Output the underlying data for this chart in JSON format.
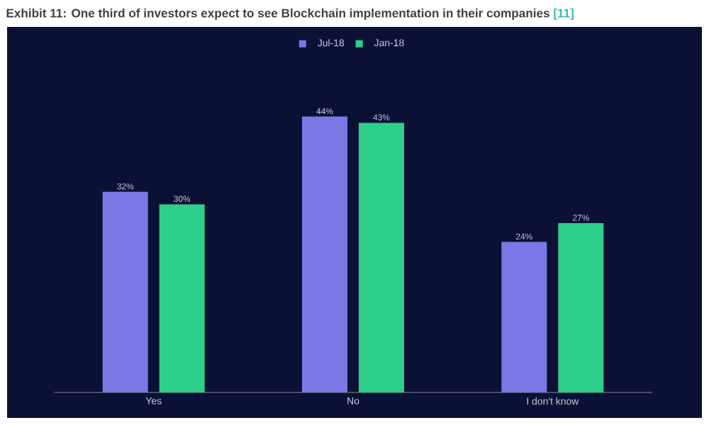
{
  "chart_data": {
    "type": "bar",
    "title": "Exhibit 11: One third of investors expect to see Blockchain implementation in their companies",
    "annotations": [
      "[11]"
    ],
    "categories": [
      "Yes",
      "No",
      "I don't know"
    ],
    "series": [
      {
        "name": "Jul-18",
        "color": "#7b78e6",
        "values": [
          32,
          44,
          24
        ],
        "value_labels": [
          "32%",
          "44%",
          "24%"
        ]
      },
      {
        "name": "Jan-18",
        "color": "#2ecf8a",
        "values": [
          30,
          43,
          27
        ],
        "value_labels": [
          "30%",
          "43%",
          "27%"
        ]
      }
    ],
    "legend": "top"
  }
}
